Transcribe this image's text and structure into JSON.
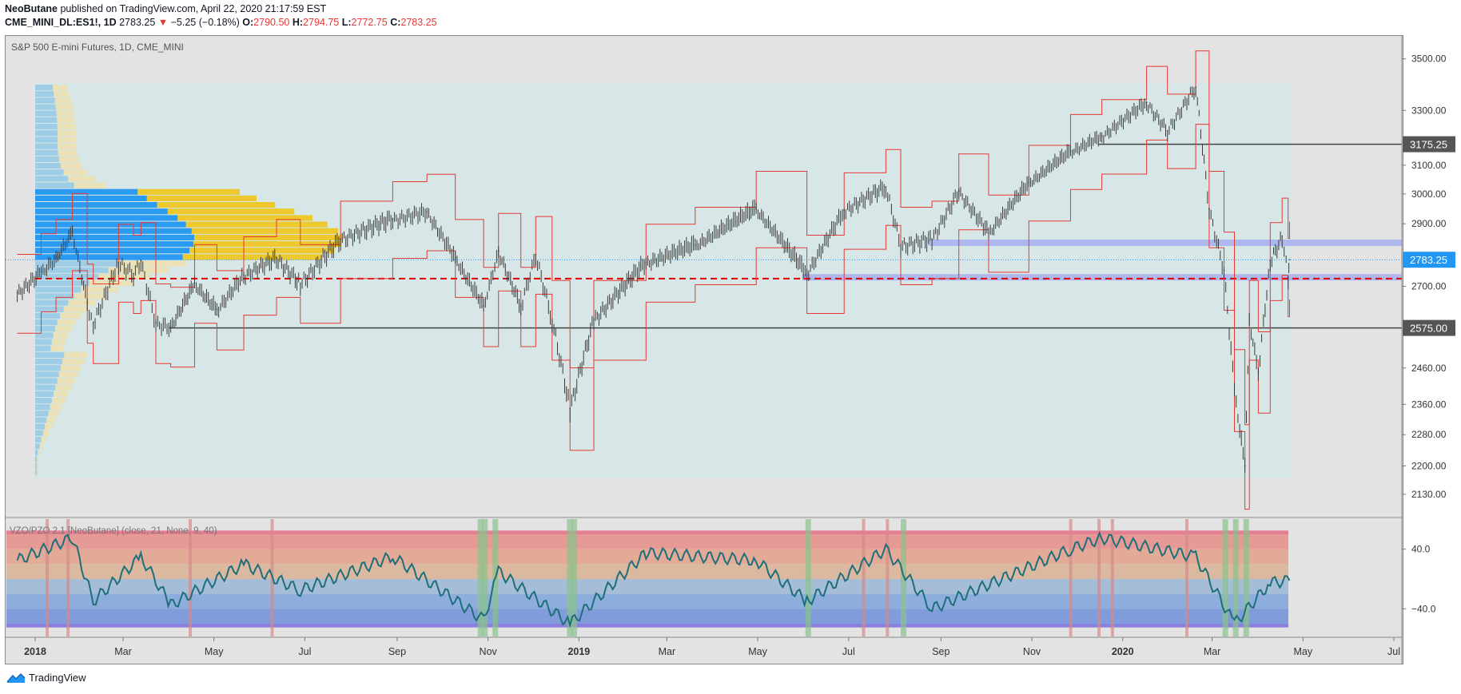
{
  "header": {
    "author": "NeoButane",
    "published": "published on TradingView.com, April 22, 2020 21:17:59 EST",
    "symbol": "CME_MINI_DL:ES1!, 1D",
    "last": "2783.25",
    "change": "−5.25 (−0.18%)",
    "o_label": "O:",
    "o": "2790.50",
    "h_label": "H:",
    "h": "2794.75",
    "l_label": "L:",
    "l": "2772.75",
    "c_label": "C:",
    "c": "2783.25"
  },
  "chart_title": "S&P 500 E-mini Futures, 1D, CME_MINI",
  "indicator_title": "VZO/PZO 2.1 [NeoButane] (close, 21, None, 9, 40)",
  "footer": {
    "brand": "TradingView"
  },
  "colors": {
    "up": "#26a69a",
    "down": "#ef5350",
    "candle": "#3a3a3a",
    "volume_profile_blue": "#2196f3",
    "volume_profile_yellow": "#f0c419",
    "band": "#e53935",
    "poc": "#e00000",
    "zone": "#9fa8f0",
    "osc_line": "#1e6f7a",
    "price_tag": "#2196f3"
  },
  "chart_data": [
    {
      "type": "line",
      "title": "S&P 500 E-mini Futures, 1D, CME_MINI",
      "yscale": "log",
      "ylim": [
        2080,
        3560
      ],
      "y_ticks": [
        "3500.00",
        "3300.00",
        "3100.00",
        "3000.00",
        "2900.00",
        "2700.00",
        "2460.00",
        "2360.00",
        "2280.00",
        "2200.00",
        "2130.00"
      ],
      "y_tick_values": [
        3500,
        3300,
        3100,
        3000,
        2900,
        2700,
        2460,
        2360,
        2280,
        2200,
        2130
      ],
      "x_ticks": [
        "2018",
        "Mar",
        "May",
        "Jul",
        "Sep",
        "Nov",
        "2019",
        "Mar",
        "May",
        "Jul",
        "Sep",
        "Nov",
        "2020",
        "Mar",
        "May",
        "Jul"
      ],
      "x_tick_dates": [
        "2018-01-01",
        "2018-03-01",
        "2018-05-01",
        "2018-07-01",
        "2018-09-01",
        "2018-11-01",
        "2019-01-01",
        "2019-03-01",
        "2019-05-01",
        "2019-07-01",
        "2019-09-01",
        "2019-11-01",
        "2020-01-01",
        "2020-03-01",
        "2020-05-01",
        "2020-07-01"
      ],
      "price_labels": [
        {
          "value": 3175.25,
          "text": "3175.25",
          "color": "#555555"
        },
        {
          "value": 2783.25,
          "text": "2783.25",
          "color": "#2196f3"
        },
        {
          "value": 2575.0,
          "text": "2575.00",
          "color": "#555555"
        }
      ],
      "series_close": [
        {
          "x": "2017-12-20",
          "y": 2680
        },
        {
          "x": "2018-01-05",
          "y": 2745
        },
        {
          "x": "2018-01-15",
          "y": 2790
        },
        {
          "x": "2018-01-26",
          "y": 2875
        },
        {
          "x": "2018-02-05",
          "y": 2650
        },
        {
          "x": "2018-02-09",
          "y": 2590
        },
        {
          "x": "2018-02-26",
          "y": 2775
        },
        {
          "x": "2018-03-08",
          "y": 2740
        },
        {
          "x": "2018-03-13",
          "y": 2780
        },
        {
          "x": "2018-03-23",
          "y": 2590
        },
        {
          "x": "2018-04-02",
          "y": 2580
        },
        {
          "x": "2018-04-18",
          "y": 2710
        },
        {
          "x": "2018-05-03",
          "y": 2630
        },
        {
          "x": "2018-05-21",
          "y": 2735
        },
        {
          "x": "2018-06-12",
          "y": 2790
        },
        {
          "x": "2018-06-28",
          "y": 2710
        },
        {
          "x": "2018-07-25",
          "y": 2850
        },
        {
          "x": "2018-08-29",
          "y": 2915
        },
        {
          "x": "2018-09-21",
          "y": 2940
        },
        {
          "x": "2018-10-10",
          "y": 2790
        },
        {
          "x": "2018-10-29",
          "y": 2640
        },
        {
          "x": "2018-11-08",
          "y": 2810
        },
        {
          "x": "2018-11-23",
          "y": 2640
        },
        {
          "x": "2018-12-03",
          "y": 2800
        },
        {
          "x": "2018-12-14",
          "y": 2600
        },
        {
          "x": "2018-12-26",
          "y": 2350
        },
        {
          "x": "2019-01-11",
          "y": 2600
        },
        {
          "x": "2019-02-15",
          "y": 2775
        },
        {
          "x": "2019-03-20",
          "y": 2830
        },
        {
          "x": "2019-04-30",
          "y": 2950
        },
        {
          "x": "2019-06-03",
          "y": 2740
        },
        {
          "x": "2019-06-28",
          "y": 2945
        },
        {
          "x": "2019-07-26",
          "y": 3025
        },
        {
          "x": "2019-08-05",
          "y": 2830
        },
        {
          "x": "2019-08-26",
          "y": 2850
        },
        {
          "x": "2019-09-13",
          "y": 3010
        },
        {
          "x": "2019-10-03",
          "y": 2870
        },
        {
          "x": "2019-10-30",
          "y": 3040
        },
        {
          "x": "2019-11-27",
          "y": 3150
        },
        {
          "x": "2019-12-18",
          "y": 3205
        },
        {
          "x": "2020-01-17",
          "y": 3330
        },
        {
          "x": "2020-01-31",
          "y": 3225
        },
        {
          "x": "2020-02-19",
          "y": 3390
        },
        {
          "x": "2020-02-28",
          "y": 2950
        },
        {
          "x": "2020-03-09",
          "y": 2750
        },
        {
          "x": "2020-03-16",
          "y": 2400
        },
        {
          "x": "2020-03-23",
          "y": 2200
        },
        {
          "x": "2020-03-26",
          "y": 2600
        },
        {
          "x": "2020-04-01",
          "y": 2450
        },
        {
          "x": "2020-04-09",
          "y": 2780
        },
        {
          "x": "2020-04-17",
          "y": 2860
        },
        {
          "x": "2020-04-21",
          "y": 2730
        },
        {
          "x": "2020-04-22",
          "y": 2783.25
        }
      ]
    },
    {
      "type": "line",
      "title": "VZO/PZO 2.1 [NeoButane] (close, 21, None, 9, 40)",
      "ylim": [
        -75,
        75
      ],
      "y_ticks": [
        "40.0",
        "−40.0"
      ],
      "y_tick_values": [
        40,
        -40
      ],
      "bands": [
        60,
        40,
        20,
        0,
        -20,
        -40,
        -60
      ],
      "series": [
        {
          "x": "2017-12-20",
          "y": 25
        },
        {
          "x": "2018-01-26",
          "y": 55
        },
        {
          "x": "2018-02-09",
          "y": -30
        },
        {
          "x": "2018-03-13",
          "y": 30
        },
        {
          "x": "2018-04-02",
          "y": -35
        },
        {
          "x": "2018-05-21",
          "y": 20
        },
        {
          "x": "2018-06-28",
          "y": -15
        },
        {
          "x": "2018-08-29",
          "y": 30
        },
        {
          "x": "2018-10-29",
          "y": -55
        },
        {
          "x": "2018-11-08",
          "y": 10
        },
        {
          "x": "2018-12-26",
          "y": -60
        },
        {
          "x": "2019-02-15",
          "y": 35
        },
        {
          "x": "2019-04-30",
          "y": 25
        },
        {
          "x": "2019-06-03",
          "y": -30
        },
        {
          "x": "2019-07-26",
          "y": 40
        },
        {
          "x": "2019-08-26",
          "y": -40
        },
        {
          "x": "2019-11-27",
          "y": 40
        },
        {
          "x": "2019-12-18",
          "y": 55
        },
        {
          "x": "2020-02-19",
          "y": 30
        },
        {
          "x": "2020-03-16",
          "y": -60
        },
        {
          "x": "2020-04-09",
          "y": -5
        },
        {
          "x": "2020-04-22",
          "y": -2
        }
      ]
    }
  ]
}
